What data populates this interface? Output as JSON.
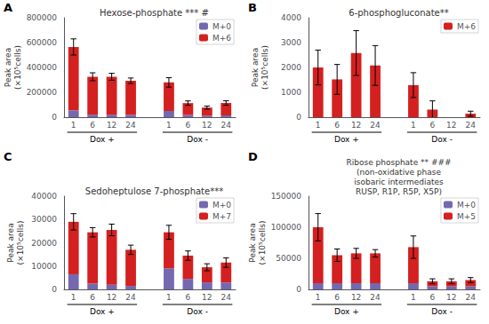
{
  "chart_data": [
    {
      "type": "bar",
      "title": "Hexose-phosphate *** #",
      "panel_label": "A",
      "ylabel": "Peak area\n(×10⁵cells)",
      "categories": [
        "1",
        "6",
        "12",
        "24",
        null,
        "1",
        "6",
        "12",
        "24"
      ],
      "group_labels": [
        "Dox +",
        "Dox -"
      ],
      "series": [
        {
          "name": "M+0",
          "color": "#7468b0",
          "values": [
            55000,
            20000,
            20000,
            18000,
            null,
            50000,
            18000,
            12000,
            14000
          ]
        },
        {
          "name": "M+6",
          "color": "#d42020",
          "values": [
            510000,
            305000,
            305000,
            275000,
            null,
            230000,
            95000,
            65000,
            100000
          ],
          "errors": [
            65000,
            32000,
            28000,
            22000,
            null,
            38000,
            18000,
            12000,
            18000
          ]
        }
      ],
      "stacked": true,
      "ylim": [
        0,
        800000
      ],
      "yticks": [
        0,
        200000,
        400000,
        600000,
        800000
      ],
      "grid": false,
      "legend": "upper right"
    },
    {
      "type": "bar",
      "title": "6-phosphogluconate**",
      "panel_label": "B",
      "ylabel": "Peak area\n(×10⁵cells)",
      "categories": [
        "1",
        "6",
        "12",
        "24",
        null,
        "1",
        "6",
        "12",
        "24"
      ],
      "group_labels": [
        "Dox +",
        "Dox -"
      ],
      "series": [
        {
          "name": "M+6",
          "color": "#d42020",
          "values": [
            2000,
            1520,
            2580,
            2080,
            null,
            1290,
            305,
            0,
            140
          ],
          "errors": [
            700,
            600,
            900,
            800,
            null,
            500,
            350,
            0,
            100
          ]
        }
      ],
      "stacked": false,
      "ylim": [
        0,
        4000
      ],
      "yticks": [
        0,
        1000,
        2000,
        3000,
        4000
      ],
      "grid": false,
      "legend": "upper right"
    },
    {
      "type": "bar",
      "title": "Sedoheptulose 7-phosphate***",
      "panel_label": "C",
      "ylabel": "Peak area\n(×10⁵cells)",
      "categories": [
        "1",
        "6",
        "12",
        "24",
        null,
        "1",
        "6",
        "12",
        "24"
      ],
      "group_labels": [
        "Dox +",
        "Dox -"
      ],
      "series": [
        {
          "name": "M+0",
          "color": "#7468b0",
          "values": [
            6500,
            2500,
            2000,
            1500,
            null,
            9000,
            4500,
            3000,
            3000
          ]
        },
        {
          "name": "M+7",
          "color": "#d42020",
          "values": [
            22500,
            22000,
            23500,
            15500,
            null,
            15500,
            10000,
            6500,
            8500
          ],
          "errors": [
            3500,
            2000,
            2500,
            2000,
            null,
            3000,
            2000,
            1500,
            2000
          ]
        }
      ],
      "stacked": true,
      "ylim": [
        0,
        40000
      ],
      "yticks": [
        0,
        10000,
        20000,
        30000,
        40000
      ],
      "grid": false,
      "legend": "upper right"
    },
    {
      "type": "bar",
      "title": "Ribose phosphate ** ###\n(non-oxidative phase\nisobaric intermediates\nRUSP, R1P, R5P, X5P)",
      "panel_label": "D",
      "ylabel": "Peak area\n(×10⁵cells)",
      "categories": [
        "1",
        "6",
        "12",
        "24",
        null,
        "1",
        "6",
        "12",
        "24"
      ],
      "group_labels": [
        "Dox +",
        "Dox -"
      ],
      "series": [
        {
          "name": "M+0",
          "color": "#7468b0",
          "values": [
            10000,
            10000,
            10000,
            10000,
            null,
            10000,
            5000,
            5000,
            5000
          ]
        },
        {
          "name": "M+5",
          "color": "#d42020",
          "values": [
            90000,
            45000,
            48000,
            48000,
            null,
            58000,
            8000,
            8000,
            10000
          ],
          "errors": [
            22000,
            10000,
            8000,
            6000,
            null,
            18000,
            4000,
            4000,
            4000
          ]
        }
      ],
      "stacked": true,
      "ylim": [
        0,
        150000
      ],
      "yticks": [
        0,
        50000,
        100000,
        150000
      ],
      "grid": false,
      "legend": "upper right"
    }
  ]
}
